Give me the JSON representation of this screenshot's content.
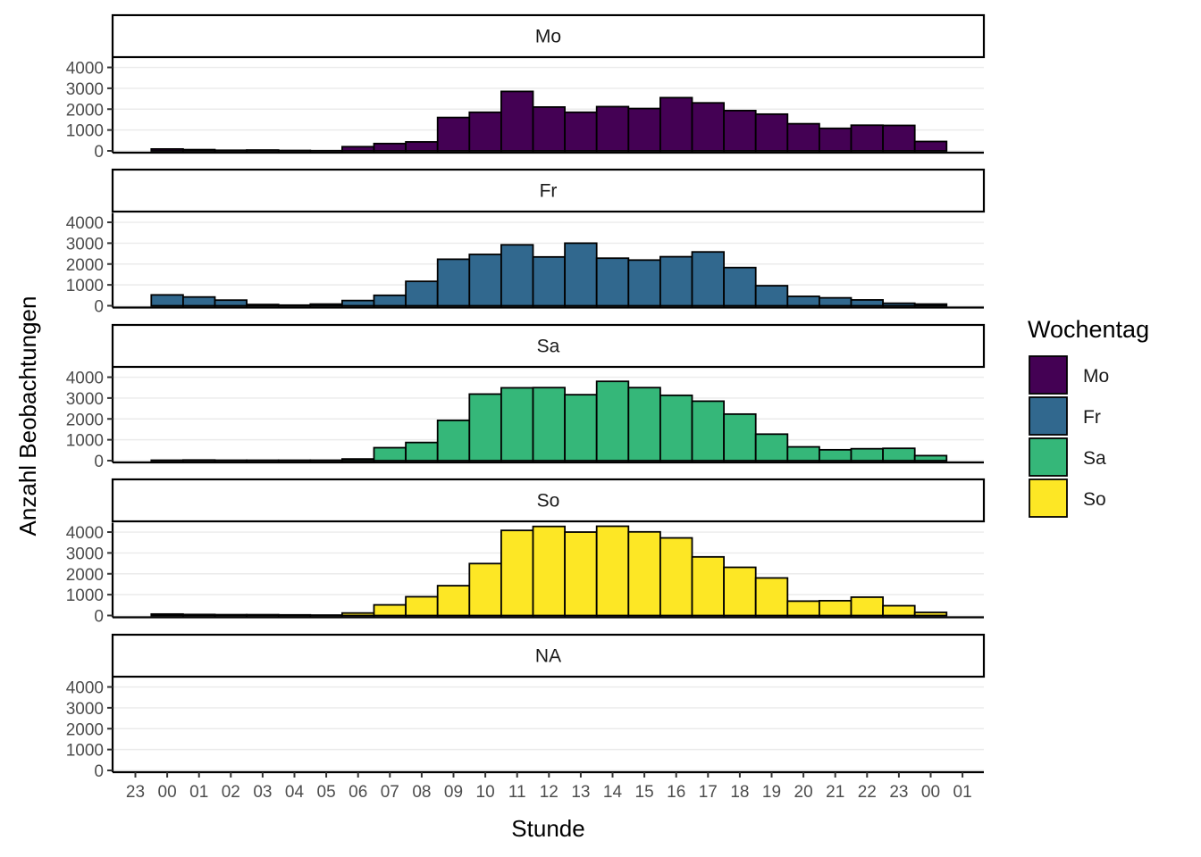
{
  "chart_data": {
    "type": "bar",
    "x_tick_labels": [
      "23",
      "00",
      "01",
      "02",
      "03",
      "04",
      "05",
      "06",
      "07",
      "08",
      "09",
      "10",
      "11",
      "12",
      "13",
      "14",
      "15",
      "16",
      "17",
      "18",
      "19",
      "20",
      "21",
      "22",
      "23",
      "00",
      "01"
    ],
    "bin_labels": [
      "00",
      "01",
      "02",
      "03",
      "04",
      "05",
      "06",
      "07",
      "08",
      "09",
      "10",
      "11",
      "12",
      "13",
      "14",
      "15",
      "16",
      "17",
      "18",
      "19",
      "20",
      "21",
      "22",
      "23",
      "00"
    ],
    "xlabel": "Stunde",
    "ylabel": "Anzahl Beobachtungen",
    "ylim": [
      0,
      4450
    ],
    "y_ticks": [
      0,
      1000,
      2000,
      3000,
      4000
    ],
    "grid": "horizontal",
    "legend": {
      "title": "Wochentag",
      "position": "right",
      "entries": [
        {
          "label": "Mo",
          "color": "#440154"
        },
        {
          "label": "Fr",
          "color": "#31688E"
        },
        {
          "label": "Sa",
          "color": "#35B779"
        },
        {
          "label": "So",
          "color": "#FDE725"
        }
      ]
    },
    "facets": [
      {
        "label": "Mo",
        "color": "#440154",
        "values": [
          90,
          60,
          30,
          40,
          20,
          10,
          200,
          350,
          430,
          1600,
          1850,
          2850,
          2100,
          1850,
          2120,
          2030,
          2550,
          2300,
          1930,
          1760,
          1300,
          1080,
          1230,
          1220,
          450
        ]
      },
      {
        "label": "Fr",
        "color": "#31688E",
        "values": [
          520,
          420,
          270,
          60,
          30,
          80,
          250,
          500,
          1170,
          2230,
          2460,
          2920,
          2340,
          3000,
          2280,
          2190,
          2350,
          2580,
          1830,
          960,
          450,
          380,
          280,
          120,
          80
        ]
      },
      {
        "label": "Sa",
        "color": "#35B779",
        "values": [
          20,
          30,
          20,
          20,
          20,
          20,
          80,
          620,
          870,
          1930,
          3190,
          3490,
          3500,
          3160,
          3800,
          3500,
          3130,
          2850,
          2230,
          1270,
          660,
          520,
          570,
          590,
          240
        ]
      },
      {
        "label": "So",
        "color": "#FDE725",
        "values": [
          70,
          50,
          40,
          40,
          30,
          20,
          120,
          510,
          900,
          1430,
          2490,
          4080,
          4270,
          4000,
          4280,
          4010,
          3720,
          2810,
          2310,
          1800,
          690,
          710,
          880,
          470,
          150
        ]
      },
      {
        "label": "NA",
        "color": "#808080",
        "values": [
          0,
          0,
          0,
          0,
          0,
          0,
          0,
          0,
          0,
          0,
          0,
          0,
          0,
          0,
          0,
          0,
          0,
          0,
          0,
          0,
          0,
          0,
          0,
          0,
          0
        ]
      }
    ]
  }
}
